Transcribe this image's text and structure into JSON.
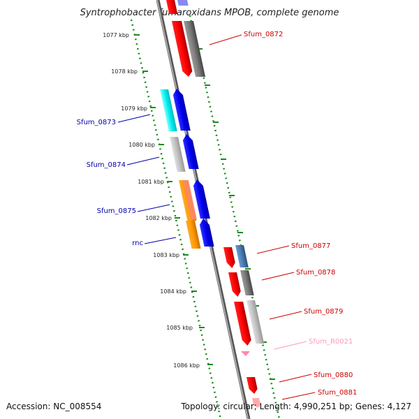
{
  "header": {
    "title": "Syntrophobacter fumaroxidans MPOB, complete genome"
  },
  "ruler": {
    "ticks": [
      "1077 kbp",
      "1078 kbp",
      "1079 kbp",
      "1080 kbp",
      "1081 kbp",
      "1082 kbp",
      "1083 kbp",
      "1084 kbp",
      "1085 kbp",
      "1086 kbp"
    ]
  },
  "labels": {
    "sfum_0872": "Sfum_0872",
    "sfum_0873": "Sfum_0873",
    "sfum_0874": "Sfum_0874",
    "sfum_0875": "Sfum_0875",
    "rnc": "rnc",
    "sfum_0877": "Sfum_0877",
    "sfum_0878": "Sfum_0878",
    "sfum_0879": "Sfum_0879",
    "sfum_r0021": "Sfum_R0021",
    "sfum_0880": "Sfum_0880",
    "sfum_0881": "Sfum_0881"
  },
  "colors": {
    "forward_label": "#cc0000",
    "reverse_label": "#0000aa",
    "rna_label": "#ff99bb",
    "ruler_dots": "#1a8a1a",
    "backbone": "#999999"
  },
  "footer": {
    "accession": "Accession: NC_008554",
    "summary": "Topology: circular; Length: 4,990,251 bp; Genes: 4,127"
  }
}
